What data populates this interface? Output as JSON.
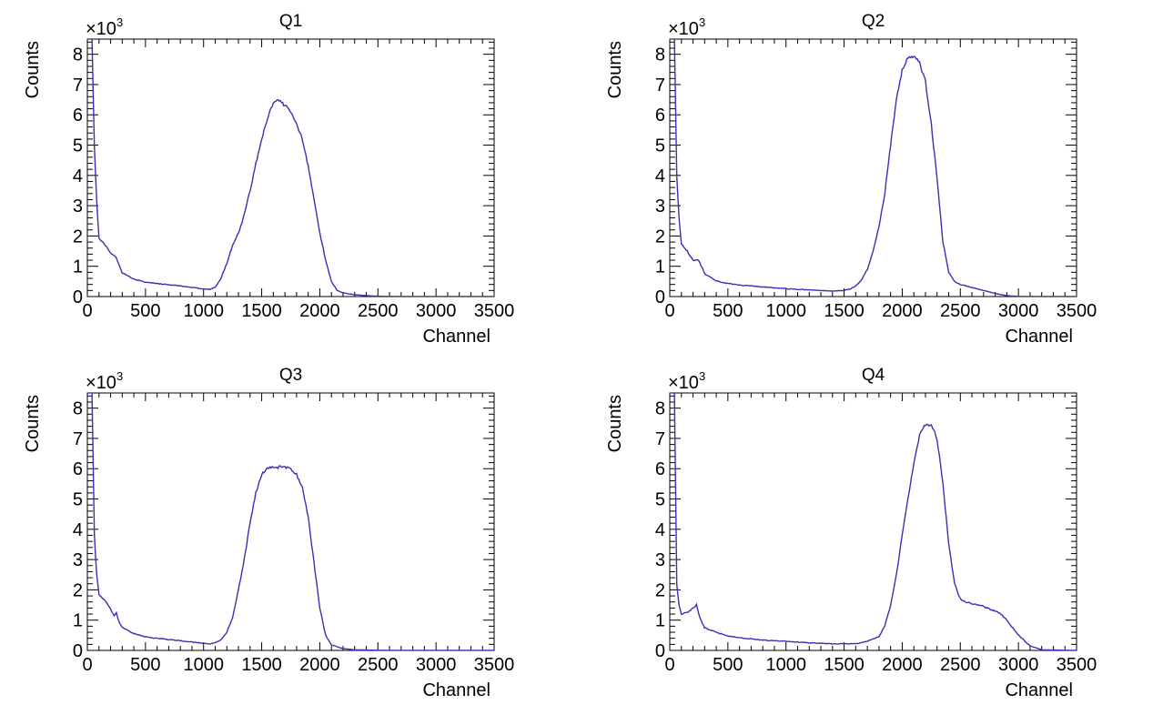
{
  "chart_data": [
    {
      "type": "line",
      "title": "Q1",
      "xlabel": "Channel",
      "ylabel": "Counts",
      "multiplier": "×10",
      "multiplier_exp": "3",
      "xlim": [
        0,
        3500
      ],
      "ylim": [
        0,
        8500
      ],
      "x_ticks": [
        "0",
        "500",
        "1000",
        "1500",
        "2000",
        "2500",
        "3000",
        "3500"
      ],
      "y_ticks": [
        "0",
        "1",
        "2",
        "3",
        "4",
        "5",
        "6",
        "7",
        "8"
      ],
      "grid": false,
      "color": "#3a2fb6",
      "series": [
        {
          "x": [
            0,
            20,
            40,
            60,
            80,
            100,
            150,
            200,
            250,
            300,
            400,
            500,
            600,
            700,
            800,
            900,
            1000,
            1050,
            1100,
            1150,
            1200,
            1250,
            1300,
            1350,
            1400,
            1450,
            1500,
            1550,
            1600,
            1650,
            1700,
            1750,
            1800,
            1850,
            1900,
            1950,
            2000,
            2050,
            2100,
            2150,
            2200,
            2300,
            2400,
            2500,
            2600,
            3000,
            3500
          ],
          "y": [
            8500,
            8500,
            8500,
            5000,
            3200,
            1900,
            1720,
            1450,
            1280,
            780,
            580,
            470,
            430,
            390,
            350,
            300,
            250,
            240,
            300,
            600,
            1100,
            1700,
            2100,
            2700,
            3500,
            4400,
            5200,
            5900,
            6400,
            6500,
            6300,
            6100,
            5700,
            5200,
            4300,
            3200,
            2100,
            1200,
            500,
            200,
            120,
            60,
            30,
            10,
            5,
            0,
            0
          ]
        }
      ]
    },
    {
      "type": "line",
      "title": "Q2",
      "xlabel": "Channel",
      "ylabel": "Counts",
      "multiplier": "×10",
      "multiplier_exp": "3",
      "xlim": [
        0,
        3500
      ],
      "ylim": [
        0,
        8500
      ],
      "x_ticks": [
        "0",
        "500",
        "1000",
        "1500",
        "2000",
        "2500",
        "3000",
        "3500"
      ],
      "y_ticks": [
        "0",
        "1",
        "2",
        "3",
        "4",
        "5",
        "6",
        "7",
        "8"
      ],
      "grid": false,
      "color": "#3a2fb6",
      "series": [
        {
          "x": [
            0,
            20,
            40,
            60,
            80,
            100,
            150,
            200,
            250,
            300,
            400,
            500,
            600,
            800,
            1000,
            1200,
            1400,
            1500,
            1550,
            1600,
            1650,
            1700,
            1750,
            1800,
            1850,
            1900,
            1950,
            2000,
            2050,
            2100,
            2150,
            2200,
            2250,
            2300,
            2350,
            2400,
            2450,
            2500,
            2600,
            2700,
            2800,
            2900,
            3000,
            3500
          ],
          "y": [
            8500,
            8500,
            8500,
            4000,
            2600,
            1750,
            1500,
            1200,
            1200,
            750,
            520,
            430,
            380,
            320,
            260,
            220,
            180,
            200,
            250,
            350,
            550,
            900,
            1500,
            2300,
            3400,
            5000,
            6500,
            7500,
            7900,
            7950,
            7700,
            7100,
            5700,
            3900,
            1800,
            800,
            500,
            400,
            300,
            200,
            100,
            30,
            5,
            0
          ]
        }
      ]
    },
    {
      "type": "line",
      "title": "Q3",
      "xlabel": "Channel",
      "ylabel": "Counts",
      "multiplier": "×10",
      "multiplier_exp": "3",
      "xlim": [
        0,
        3500
      ],
      "ylim": [
        0,
        8500
      ],
      "x_ticks": [
        "0",
        "500",
        "1000",
        "1500",
        "2000",
        "2500",
        "3000",
        "3500"
      ],
      "y_ticks": [
        "0",
        "1",
        "2",
        "3",
        "4",
        "5",
        "6",
        "7",
        "8"
      ],
      "grid": false,
      "color": "#3a2fb6",
      "series": [
        {
          "x": [
            0,
            20,
            40,
            60,
            80,
            100,
            150,
            200,
            230,
            250,
            270,
            300,
            400,
            500,
            600,
            700,
            800,
            900,
            1000,
            1050,
            1100,
            1150,
            1200,
            1250,
            1300,
            1350,
            1400,
            1450,
            1500,
            1550,
            1600,
            1650,
            1700,
            1750,
            1800,
            1850,
            1900,
            1950,
            2000,
            2050,
            2100,
            2200,
            2300,
            2500,
            3000,
            3500
          ],
          "y": [
            8500,
            8500,
            8500,
            3800,
            2500,
            1850,
            1650,
            1350,
            1150,
            1250,
            950,
            750,
            560,
            450,
            400,
            360,
            320,
            280,
            230,
            210,
            250,
            350,
            600,
            1100,
            2000,
            3000,
            4200,
            5200,
            5800,
            6000,
            6050,
            6050,
            6050,
            6000,
            5800,
            5400,
            4400,
            2900,
            1400,
            500,
            180,
            60,
            20,
            5,
            0,
            0
          ]
        }
      ]
    },
    {
      "type": "line",
      "title": "Q4",
      "xlabel": "Channel",
      "ylabel": "Counts",
      "multiplier": "×10",
      "multiplier_exp": "3",
      "xlim": [
        0,
        3500
      ],
      "ylim": [
        0,
        8500
      ],
      "x_ticks": [
        "0",
        "500",
        "1000",
        "1500",
        "2000",
        "2500",
        "3000",
        "3500"
      ],
      "y_ticks": [
        "0",
        "1",
        "2",
        "3",
        "4",
        "5",
        "6",
        "7",
        "8"
      ],
      "grid": false,
      "color": "#3a2fb6",
      "series": [
        {
          "x": [
            0,
            20,
            40,
            60,
            80,
            100,
            150,
            200,
            230,
            250,
            280,
            300,
            400,
            500,
            600,
            800,
            1000,
            1200,
            1400,
            1600,
            1700,
            1800,
            1850,
            1900,
            1950,
            2000,
            2050,
            2100,
            2150,
            2200,
            2250,
            2300,
            2350,
            2400,
            2450,
            2500,
            2550,
            2600,
            2700,
            2800,
            2850,
            2900,
            3000,
            3100,
            3200,
            3500
          ],
          "y": [
            8500,
            8500,
            8500,
            2200,
            1500,
            1200,
            1250,
            1400,
            1500,
            1200,
            900,
            750,
            600,
            480,
            420,
            340,
            300,
            250,
            220,
            220,
            300,
            450,
            800,
            1500,
            2500,
            3800,
            5000,
            6200,
            7100,
            7450,
            7450,
            7000,
            5500,
            3500,
            2200,
            1700,
            1600,
            1550,
            1450,
            1300,
            1200,
            1000,
            500,
            150,
            20,
            0
          ]
        }
      ]
    }
  ]
}
